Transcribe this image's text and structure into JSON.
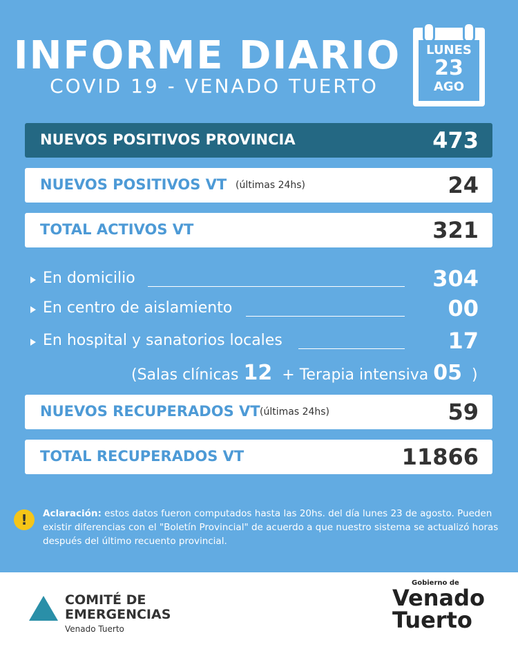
{
  "header": {
    "title": "INFORME DIARIO",
    "subtitle": "COVID 19 - VENADO TUERTO",
    "calendar": {
      "weekday": "LUNES",
      "day": "23",
      "month": "AGO"
    }
  },
  "rows": [
    {
      "label": "NUEVOS POSITIVOS PROVINCIA",
      "value": "473"
    },
    {
      "label": "NUEVOS POSITIVOS VT",
      "note": "(últimas 24hs)",
      "value": "24"
    },
    {
      "label": "TOTAL ACTIVOS VT",
      "value": "321"
    }
  ],
  "breakdown": [
    {
      "label": "En domicilio",
      "value": "304"
    },
    {
      "label": "En centro de aislamiento",
      "value": "00"
    },
    {
      "label": "En hospital y sanatorios locales",
      "value": "17"
    }
  ],
  "hospital_detail": {
    "open": "(",
    "salas_label": "Salas clínicas",
    "salas_value": "12",
    "plus": "+",
    "terapia_label": "Terapia intensiva",
    "terapia_value": "05",
    "close": ")"
  },
  "recovered": [
    {
      "label": "NUEVOS RECUPERADOS VT",
      "note": "(últimas 24hs)",
      "value": "59"
    },
    {
      "label": "TOTAL RECUPERADOS VT",
      "value": "11866"
    }
  ],
  "note": {
    "lead": "Aclaración:",
    "text": "estos datos fueron computados hasta las 20hs. del día lunes 23 de agosto. Pueden existir diferencias con el \"Boletín Provincial\" de acuerdo a que nuestro sistema se actualizó horas después del último recuento provincial."
  },
  "footer": {
    "left": {
      "line1": "COMITÉ DE",
      "line2": "EMERGENCIAS",
      "line3": "Venado Tuerto"
    },
    "right": {
      "small": "Gobierno de",
      "line1": "Venado",
      "line2": "Tuerto"
    }
  }
}
